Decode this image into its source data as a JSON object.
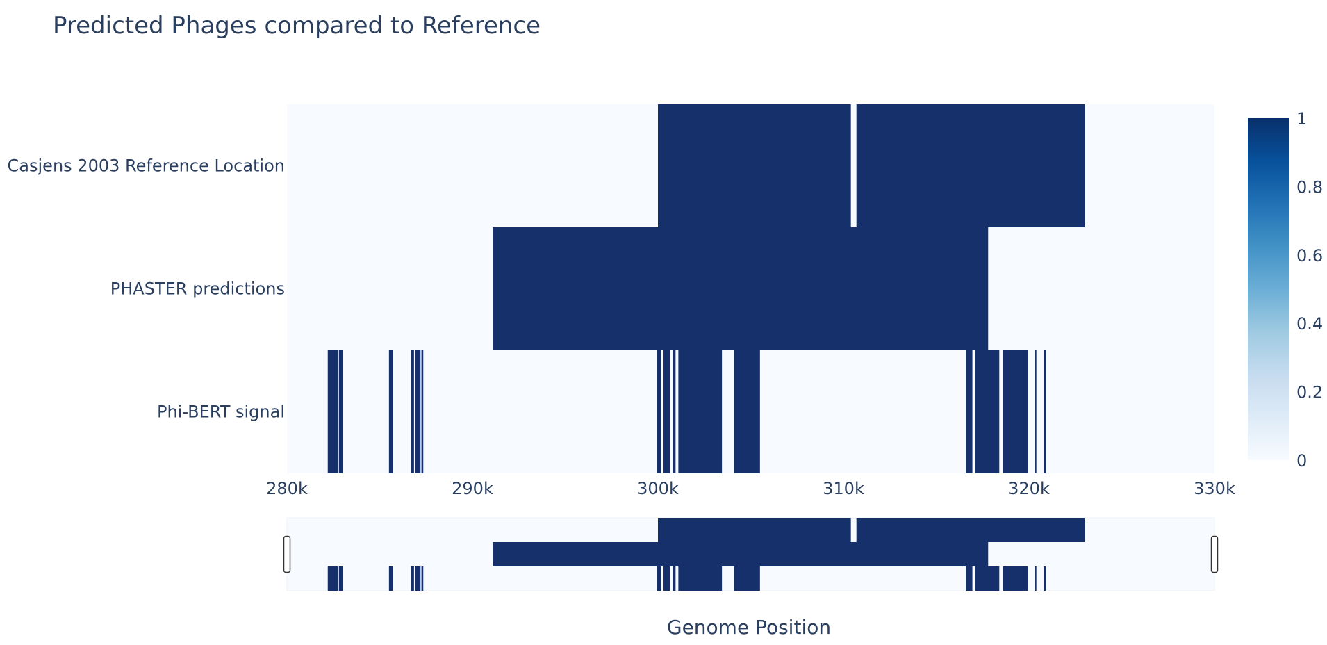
{
  "chart_data": {
    "type": "heatmap",
    "title": "Predicted Phages compared to Reference",
    "xlabel": "Genome Position",
    "ylabel": "",
    "xlim": [
      280000,
      330000
    ],
    "x_ticks": [
      {
        "value": 280000,
        "label": "280k"
      },
      {
        "value": 290000,
        "label": "290k"
      },
      {
        "value": 300000,
        "label": "300k"
      },
      {
        "value": 310000,
        "label": "310k"
      },
      {
        "value": 320000,
        "label": "320k"
      },
      {
        "value": 330000,
        "label": "330k"
      }
    ],
    "rows": [
      {
        "label": "Casjens 2003 Reference Location",
        "intervals": [
          [
            300000,
            310400
          ],
          [
            310700,
            323000
          ]
        ]
      },
      {
        "label": "PHASTER predictions",
        "intervals": [
          [
            291100,
            317800
          ]
        ]
      },
      {
        "label": "Phi-BERT signal",
        "intervals": [
          [
            282200,
            282750
          ],
          [
            282800,
            283000
          ],
          [
            285500,
            285700
          ],
          [
            286700,
            286850
          ],
          [
            286900,
            287200
          ],
          [
            287250,
            287350
          ],
          [
            299950,
            300150
          ],
          [
            300300,
            300650
          ],
          [
            300800,
            300950
          ],
          [
            301100,
            303450
          ],
          [
            304100,
            305500
          ],
          [
            316600,
            316950
          ],
          [
            317100,
            318400
          ],
          [
            318600,
            319950
          ],
          [
            320300,
            320400
          ],
          [
            320800,
            320900
          ]
        ]
      }
    ],
    "colorscale": {
      "name": "Blues",
      "min": 0,
      "max": 1,
      "stops": [
        "#f7fbff",
        "#deebf7",
        "#c6dbef",
        "#9ecae1",
        "#6baed6",
        "#4292c6",
        "#2171b5",
        "#08519c",
        "#08306b"
      ],
      "ticks": [
        {
          "value": 0,
          "label": "0"
        },
        {
          "value": 0.2,
          "label": "0.2"
        },
        {
          "value": 0.4,
          "label": "0.4"
        },
        {
          "value": 0.6,
          "label": "0.6"
        },
        {
          "value": 0.8,
          "label": "0.8"
        },
        {
          "value": 1,
          "label": "1"
        }
      ]
    },
    "colors": {
      "background_cell": "#f7fbff",
      "filled_cell": "#15306a",
      "text": "#2a3f5f"
    },
    "rangeslider": {
      "visible": true,
      "range": [
        280000,
        330000
      ]
    }
  }
}
